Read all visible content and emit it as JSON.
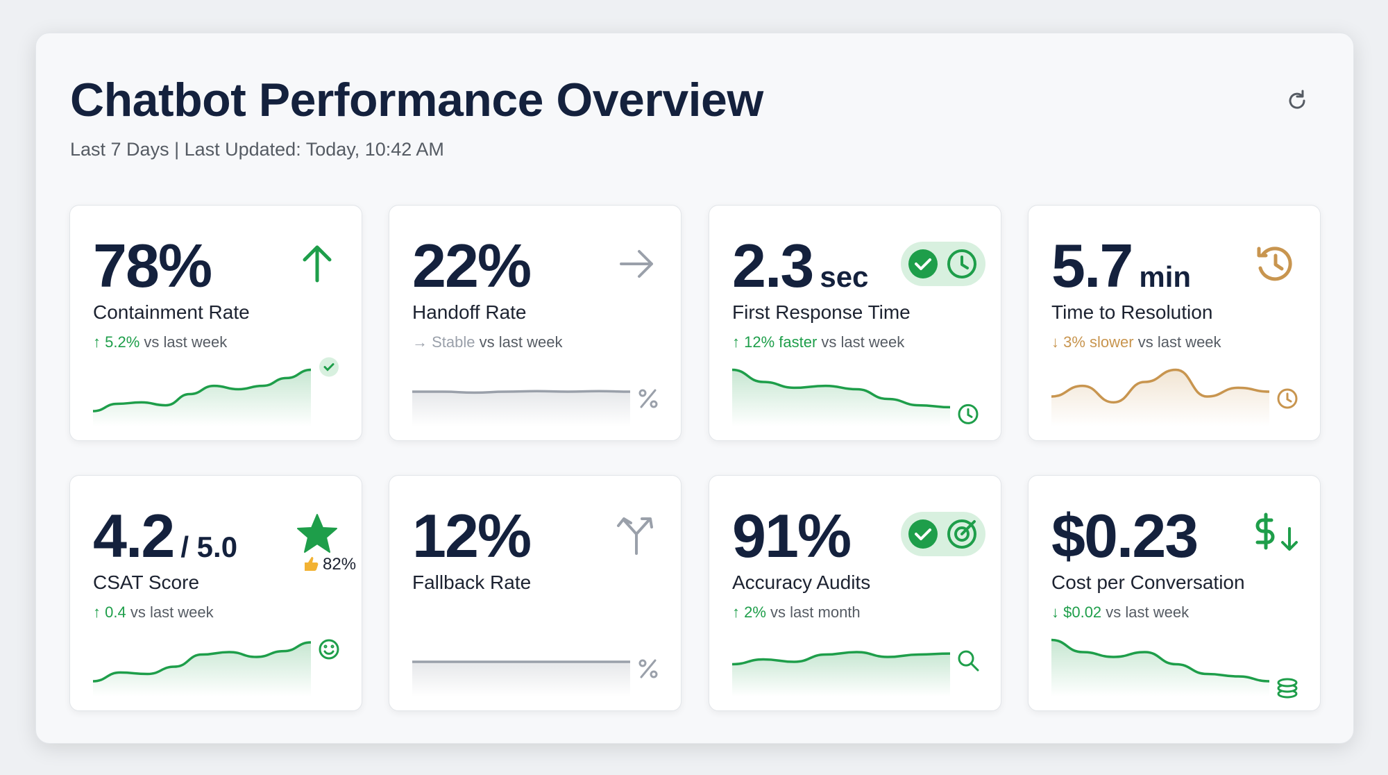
{
  "header": {
    "title": "Chatbot Performance Overview",
    "subtitle": "Last 7 Days | Last Updated: Today, 10:42 AM"
  },
  "cards": [
    {
      "value": "78%",
      "label": "Containment Rate",
      "delta": "↑ 5.2%",
      "rest": "vs last week"
    },
    {
      "value": "22%",
      "label": "Handoff Rate",
      "delta": "→ Stable",
      "rest": "vs last week"
    },
    {
      "value": "2.3",
      "unit": "sec",
      "label": "First Response Time",
      "delta": "↑ 12% faster",
      "rest": "vs last week"
    },
    {
      "value": "5.7",
      "unit": "min",
      "label": "Time to Resolution",
      "delta": "↓ 3% slower",
      "rest": "vs last week"
    },
    {
      "value": "4.2",
      "unit": "/ 5.0",
      "badge": "82%",
      "label": "CSAT Score",
      "delta": "↑ 0.4",
      "rest": "vs last week"
    },
    {
      "value": "12%",
      "label": "Fallback Rate"
    },
    {
      "value": "91%",
      "label": "Accuracy Audits",
      "delta": "↑ 2%",
      "rest": "vs last month"
    },
    {
      "value": "$0.23",
      "label": "Cost per Conversation",
      "delta": "↓ $0.02",
      "rest": "vs last week"
    }
  ]
}
